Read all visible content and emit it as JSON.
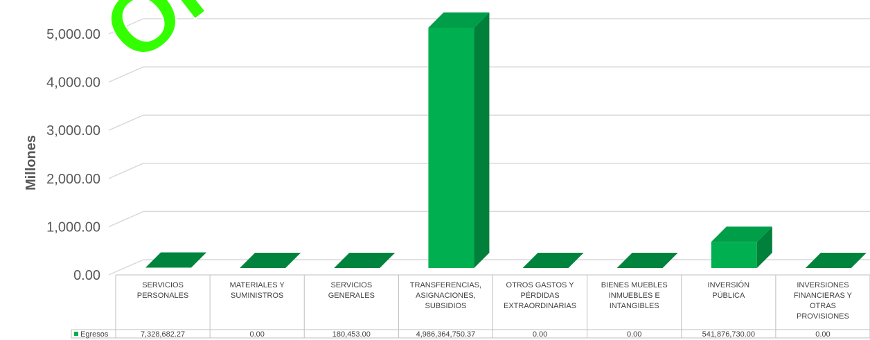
{
  "watermark": "ORIGINAL",
  "chart_data": {
    "type": "bar",
    "title": "",
    "ylabel": "Millones",
    "xlabel": "",
    "ylim": [
      0,
      5000
    ],
    "yticks": [
      "0.00",
      "1,000.00",
      "2,000.00",
      "3,000.00",
      "4,000.00",
      "5,000.00"
    ],
    "categories": [
      [
        "SERVICIOS",
        "PERSONALES"
      ],
      [
        "MATERIALES Y",
        "SUMINISTROS"
      ],
      [
        "SERVICIOS",
        "GENERALES"
      ],
      [
        "TRANSFERENCIAS,",
        "ASIGNACIONES,",
        "SUBSIDIOS"
      ],
      [
        "OTROS GASTOS Y",
        "PÉRDIDAS",
        "EXTRAORDINARIAS"
      ],
      [
        "BIENES MUEBLES",
        "INMUEBLES E",
        "INTANGIBLES"
      ],
      [
        "INVERSIÓN",
        "PÚBLICA"
      ],
      [
        "INVERSIONES",
        "FINANCIERAS Y",
        "OTRAS",
        "PROVISIONES"
      ]
    ],
    "series": [
      {
        "name": "Egresos",
        "color": "#00b050",
        "values": [
          7.32868227,
          0,
          0.180453,
          4986.36475037,
          0,
          0,
          541.87673,
          0
        ],
        "labels": [
          "7,328,682.27",
          "0.00",
          "180,453.00",
          "4,986,364,750.37",
          "0.00",
          "0.00",
          "541,876,730.00",
          "0.00"
        ]
      }
    ],
    "data_table": true,
    "grid": true,
    "three_d": true
  }
}
